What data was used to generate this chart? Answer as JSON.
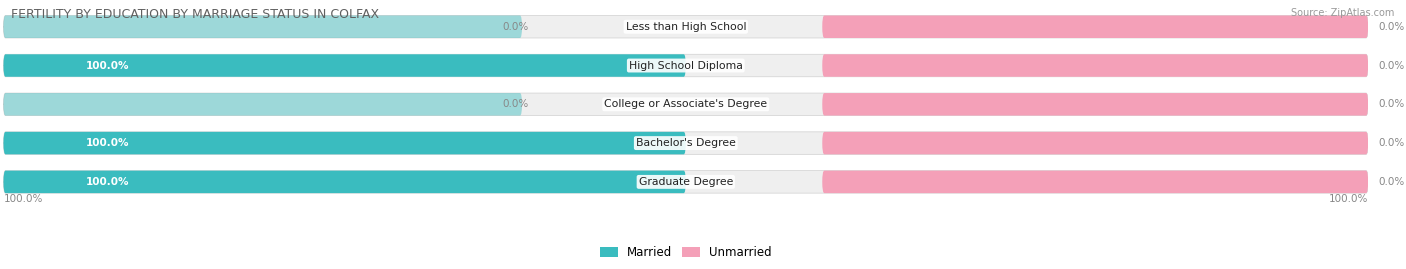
{
  "title": "FERTILITY BY EDUCATION BY MARRIAGE STATUS IN COLFAX",
  "source": "Source: ZipAtlas.com",
  "categories": [
    "Less than High School",
    "High School Diploma",
    "College or Associate's Degree",
    "Bachelor's Degree",
    "Graduate Degree"
  ],
  "married_values": [
    0.0,
    100.0,
    0.0,
    100.0,
    100.0
  ],
  "unmarried_values": [
    0.0,
    0.0,
    0.0,
    0.0,
    0.0
  ],
  "married_color": "#3abcbf",
  "unmarried_color": "#f4a0b8",
  "bar_bg_color": "#efefef",
  "bar_border_color": "#d0d0d0",
  "title_color": "#606060",
  "value_color_inside": "#ffffff",
  "value_color_outside": "#888888",
  "bg_color": "#ffffff",
  "figsize": [
    14.06,
    2.69
  ],
  "dpi": 100
}
